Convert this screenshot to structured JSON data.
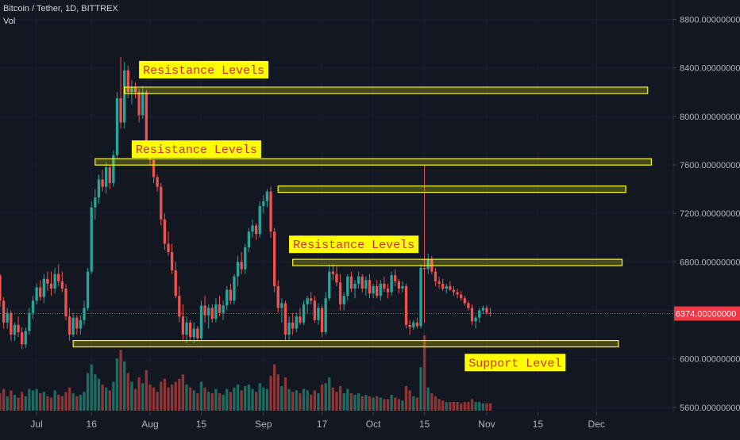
{
  "symbol_title": "Bitcoin / Tether, 1D, BITTREX",
  "vol_label": "Vol",
  "current_price_label": "6374.00000000",
  "colors": {
    "background": "#131722",
    "up": "#26a69a",
    "down": "#ef5350",
    "up_vol": "#1f6b62",
    "down_vol": "#8e3536",
    "level_fill": "#ffff00",
    "level_text": "#d32f2f",
    "axis_text": "#b2b5be",
    "price_tag": "#f23645"
  },
  "chart_data": {
    "type": "candlestick",
    "title": "Bitcoin / Tether, 1D, BITTREX",
    "ylim": [
      5560,
      8960
    ],
    "yticks": [
      {
        "value": 5600,
        "label": "5600.00000000"
      },
      {
        "value": 6000,
        "label": "6000.00000000"
      },
      {
        "value": 6400,
        "label": "6400.00000000"
      },
      {
        "value": 6800,
        "label": "6800.00000000"
      },
      {
        "value": 7200,
        "label": "7200.00000000"
      },
      {
        "value": 7600,
        "label": "7600.00000000"
      },
      {
        "value": 8000,
        "label": "8000.00000000"
      },
      {
        "value": 8400,
        "label": "8400.00000000"
      },
      {
        "value": 8800,
        "label": "8800.00000000"
      }
    ],
    "xticks": [
      {
        "day": 0,
        "label": "Jul"
      },
      {
        "day": 15,
        "label": "16"
      },
      {
        "day": 31,
        "label": "Aug"
      },
      {
        "day": 45,
        "label": "15"
      },
      {
        "day": 62,
        "label": "Sep"
      },
      {
        "day": 78,
        "label": "17"
      },
      {
        "day": 92,
        "label": "Oct"
      },
      {
        "day": 106,
        "label": "15"
      },
      {
        "day": 123,
        "label": "Nov"
      },
      {
        "day": 137,
        "label": "15"
      },
      {
        "day": 153,
        "label": "Dec"
      }
    ],
    "x_start_day": -10,
    "x_end_day": 174,
    "current_price": 6374,
    "levels": [
      {
        "price": 8215,
        "start_day": 24,
        "end_day": 167
      },
      {
        "price": 7625,
        "start_day": 16,
        "end_day": 168
      },
      {
        "price": 7400,
        "start_day": 66,
        "end_day": 161
      },
      {
        "price": 6795,
        "start_day": 70,
        "end_day": 160
      },
      {
        "price": 6125,
        "start_day": 10,
        "end_day": 159
      }
    ],
    "annotations": [
      {
        "text": "Resistance Levels",
        "day": 28,
        "price": 8385
      },
      {
        "text": "Resistance Levels",
        "day": 26,
        "price": 7730
      },
      {
        "text": "Resistance Levels",
        "day": 69,
        "price": 6945
      },
      {
        "text": "Support Level",
        "day": 117,
        "price": 5970
      }
    ],
    "candles": [
      [
        -10,
        6690,
        6700,
        6430,
        6480,
        1.2
      ],
      [
        -9,
        6480,
        6510,
        6250,
        6300,
        1.5
      ],
      [
        -8,
        6300,
        6420,
        6250,
        6380,
        1.0
      ],
      [
        -7,
        6380,
        6400,
        6150,
        6200,
        1.4
      ],
      [
        -6,
        6200,
        6300,
        6150,
        6280,
        1.1
      ],
      [
        -5,
        6280,
        6350,
        6180,
        6220,
        0.9
      ],
      [
        -4,
        6220,
        6260,
        6080,
        6120,
        1.3
      ],
      [
        -3,
        6120,
        6260,
        6090,
        6230,
        1.0
      ],
      [
        -2,
        6230,
        6420,
        6200,
        6380,
        1.5
      ],
      [
        -1,
        6380,
        6520,
        6330,
        6480,
        1.4
      ],
      [
        0,
        6480,
        6620,
        6450,
        6590,
        1.5
      ],
      [
        1,
        6590,
        6650,
        6480,
        6510,
        1.2
      ],
      [
        2,
        6510,
        6700,
        6460,
        6660,
        1.3
      ],
      [
        3,
        6660,
        6720,
        6560,
        6620,
        1.0
      ],
      [
        4,
        6620,
        6720,
        6520,
        6580,
        0.9
      ],
      [
        5,
        6580,
        6750,
        6540,
        6700,
        1.4
      ],
      [
        6,
        6700,
        6780,
        6600,
        6640,
        1.1
      ],
      [
        7,
        6640,
        6720,
        6550,
        6580,
        1.0
      ],
      [
        8,
        6580,
        6620,
        6320,
        6350,
        1.3
      ],
      [
        9,
        6350,
        6420,
        6150,
        6200,
        1.6
      ],
      [
        10,
        6200,
        6380,
        6180,
        6340,
        1.2
      ],
      [
        11,
        6340,
        6360,
        6200,
        6250,
        1.0
      ],
      [
        12,
        6250,
        6360,
        6200,
        6320,
        1.1
      ],
      [
        13,
        6320,
        6480,
        6280,
        6420,
        1.3
      ],
      [
        14,
        6420,
        6750,
        6400,
        6720,
        2.6
      ],
      [
        15,
        6720,
        7300,
        6700,
        7250,
        3.2
      ],
      [
        16,
        7250,
        7400,
        7150,
        7330,
        2.5
      ],
      [
        17,
        7330,
        7520,
        7280,
        7480,
        2.2
      ],
      [
        18,
        7480,
        7560,
        7380,
        7420,
        1.8
      ],
      [
        19,
        7420,
        7620,
        7360,
        7580,
        1.6
      ],
      [
        20,
        7580,
        7600,
        7400,
        7450,
        1.4
      ],
      [
        21,
        7450,
        7720,
        7420,
        7680,
        2.0
      ],
      [
        22,
        7680,
        8200,
        7650,
        8150,
        3.6
      ],
      [
        23,
        8150,
        8490,
        7900,
        7950,
        4.2
      ],
      [
        24,
        7950,
        8450,
        7900,
        8380,
        3.4
      ],
      [
        25,
        8380,
        8420,
        8150,
        8200,
        2.6
      ],
      [
        26,
        8200,
        8300,
        8100,
        8240,
        2.0
      ],
      [
        27,
        8240,
        8280,
        8150,
        8200,
        1.5
      ],
      [
        28,
        8200,
        8230,
        7950,
        8010,
        2.3
      ],
      [
        29,
        8010,
        8250,
        7980,
        8200,
        1.9
      ],
      [
        30,
        8200,
        8220,
        7700,
        7750,
        2.8
      ],
      [
        31,
        7750,
        7800,
        7600,
        7640,
        1.8
      ],
      [
        32,
        7640,
        7680,
        7450,
        7500,
        1.6
      ],
      [
        33,
        7500,
        7520,
        7380,
        7420,
        1.3
      ],
      [
        34,
        7420,
        7450,
        7100,
        7150,
        2.0
      ],
      [
        35,
        7150,
        7200,
        6900,
        6950,
        2.2
      ],
      [
        36,
        6950,
        7050,
        6850,
        6880,
        1.6
      ],
      [
        37,
        6880,
        6950,
        6700,
        6730,
        1.8
      ],
      [
        38,
        6730,
        6800,
        6500,
        6520,
        2.0
      ],
      [
        39,
        6520,
        6600,
        6300,
        6350,
        2.2
      ],
      [
        40,
        6350,
        6450,
        6150,
        6200,
        2.5
      ],
      [
        41,
        6200,
        6350,
        6130,
        6300,
        1.8
      ],
      [
        42,
        6300,
        6320,
        6150,
        6180,
        1.6
      ],
      [
        43,
        6180,
        6300,
        6130,
        6250,
        1.4
      ],
      [
        44,
        6250,
        6270,
        6150,
        6170,
        1.2
      ],
      [
        45,
        6170,
        6480,
        6150,
        6440,
        2.0
      ],
      [
        46,
        6440,
        6520,
        6300,
        6360,
        1.6
      ],
      [
        47,
        6360,
        6450,
        6250,
        6420,
        1.3
      ],
      [
        48,
        6420,
        6450,
        6300,
        6330,
        1.2
      ],
      [
        49,
        6330,
        6500,
        6300,
        6450,
        1.5
      ],
      [
        50,
        6450,
        6520,
        6350,
        6380,
        1.2
      ],
      [
        51,
        6380,
        6480,
        6320,
        6440,
        1.1
      ],
      [
        52,
        6440,
        6600,
        6400,
        6570,
        1.5
      ],
      [
        53,
        6570,
        6620,
        6450,
        6480,
        1.3
      ],
      [
        54,
        6480,
        6700,
        6450,
        6680,
        1.6
      ],
      [
        55,
        6680,
        6850,
        6600,
        6800,
        1.8
      ],
      [
        56,
        6800,
        6880,
        6700,
        6740,
        1.4
      ],
      [
        57,
        6740,
        6950,
        6700,
        6920,
        1.7
      ],
      [
        58,
        6920,
        7080,
        6880,
        7050,
        1.8
      ],
      [
        59,
        7050,
        7150,
        7000,
        7100,
        1.5
      ],
      [
        60,
        7100,
        7120,
        6980,
        7030,
        1.3
      ],
      [
        61,
        7030,
        7300,
        7000,
        7260,
        1.9
      ],
      [
        62,
        7260,
        7350,
        7200,
        7300,
        1.6
      ],
      [
        63,
        7300,
        7400,
        7250,
        7380,
        1.5
      ],
      [
        64,
        7380,
        7420,
        7000,
        7050,
        2.4
      ],
      [
        65,
        7050,
        7080,
        6550,
        6600,
        3.2
      ],
      [
        66,
        6600,
        6650,
        6380,
        6420,
        2.5
      ],
      [
        67,
        6420,
        6500,
        6300,
        6460,
        1.7
      ],
      [
        68,
        6460,
        6480,
        6150,
        6200,
        2.3
      ],
      [
        69,
        6200,
        6350,
        6150,
        6300,
        1.5
      ],
      [
        70,
        6300,
        6380,
        6200,
        6250,
        1.3
      ],
      [
        71,
        6250,
        6380,
        6220,
        6350,
        1.4
      ],
      [
        72,
        6350,
        6420,
        6280,
        6300,
        1.2
      ],
      [
        73,
        6300,
        6480,
        6280,
        6450,
        1.5
      ],
      [
        74,
        6450,
        6520,
        6380,
        6500,
        1.4
      ],
      [
        75,
        6500,
        6550,
        6450,
        6480,
        1.1
      ],
      [
        76,
        6480,
        6520,
        6300,
        6320,
        1.4
      ],
      [
        77,
        6320,
        6460,
        6280,
        6420,
        1.2
      ],
      [
        78,
        6420,
        6450,
        6180,
        6220,
        1.8
      ],
      [
        79,
        6220,
        6550,
        6200,
        6500,
        1.9
      ],
      [
        80,
        6500,
        6780,
        6480,
        6720,
        2.3
      ],
      [
        81,
        6720,
        6780,
        6650,
        6700,
        1.6
      ],
      [
        82,
        6700,
        6760,
        6600,
        6630,
        1.3
      ],
      [
        83,
        6630,
        6700,
        6400,
        6450,
        1.7
      ],
      [
        84,
        6450,
        6550,
        6400,
        6520,
        1.2
      ],
      [
        85,
        6520,
        6700,
        6480,
        6680,
        1.5
      ],
      [
        86,
        6680,
        6720,
        6550,
        6580,
        1.2
      ],
      [
        87,
        6580,
        6650,
        6500,
        6620,
        1.1
      ],
      [
        88,
        6620,
        6720,
        6580,
        6680,
        1.2
      ],
      [
        89,
        6680,
        6700,
        6550,
        6580,
        1.0
      ],
      [
        90,
        6580,
        6680,
        6520,
        6650,
        1.1
      ],
      [
        91,
        6650,
        6700,
        6500,
        6540,
        1.0
      ],
      [
        92,
        6540,
        6620,
        6500,
        6600,
        0.9
      ],
      [
        93,
        6600,
        6650,
        6500,
        6520,
        1.0
      ],
      [
        94,
        6520,
        6650,
        6480,
        6620,
        0.9
      ],
      [
        95,
        6620,
        6680,
        6550,
        6580,
        0.8
      ],
      [
        96,
        6580,
        6620,
        6500,
        6550,
        0.8
      ],
      [
        97,
        6550,
        6720,
        6520,
        6690,
        1.1
      ],
      [
        98,
        6690,
        6740,
        6600,
        6640,
        0.9
      ],
      [
        99,
        6640,
        6660,
        6540,
        6580,
        0.8
      ],
      [
        100,
        6580,
        6640,
        6550,
        6600,
        0.7
      ],
      [
        101,
        6600,
        6620,
        6250,
        6280,
        1.7
      ],
      [
        102,
        6280,
        6320,
        6200,
        6260,
        1.4
      ],
      [
        103,
        6260,
        6320,
        6240,
        6300,
        1.0
      ],
      [
        104,
        6300,
        6340,
        6250,
        6270,
        0.9
      ],
      [
        105,
        6270,
        6780,
        6250,
        6750,
        3.0
      ],
      [
        106,
        6750,
        7600,
        6300,
        6740,
        5.2
      ],
      [
        107,
        6740,
        6870,
        6700,
        6820,
        1.6
      ],
      [
        108,
        6820,
        6850,
        6700,
        6720,
        1.2
      ],
      [
        109,
        6720,
        6750,
        6600,
        6640,
        1.0
      ],
      [
        110,
        6640,
        6680,
        6580,
        6620,
        0.8
      ],
      [
        111,
        6620,
        6660,
        6560,
        6580,
        0.7
      ],
      [
        112,
        6580,
        6620,
        6540,
        6600,
        0.6
      ],
      [
        113,
        6600,
        6640,
        6560,
        6570,
        0.6
      ],
      [
        114,
        6570,
        6600,
        6520,
        6550,
        0.6
      ],
      [
        115,
        6550,
        6580,
        6500,
        6530,
        0.6
      ],
      [
        116,
        6530,
        6560,
        6480,
        6500,
        0.5
      ],
      [
        117,
        6500,
        6520,
        6440,
        6460,
        0.6
      ],
      [
        118,
        6460,
        6480,
        6400,
        6420,
        0.6
      ],
      [
        119,
        6420,
        6450,
        6280,
        6310,
        0.8
      ],
      [
        120,
        6310,
        6360,
        6250,
        6340,
        0.6
      ],
      [
        121,
        6340,
        6420,
        6300,
        6400,
        0.6
      ],
      [
        122,
        6400,
        6440,
        6370,
        6420,
        0.5
      ],
      [
        123,
        6420,
        6440,
        6360,
        6380,
        0.5
      ],
      [
        124,
        6380,
        6420,
        6350,
        6374,
        0.5
      ]
    ]
  }
}
